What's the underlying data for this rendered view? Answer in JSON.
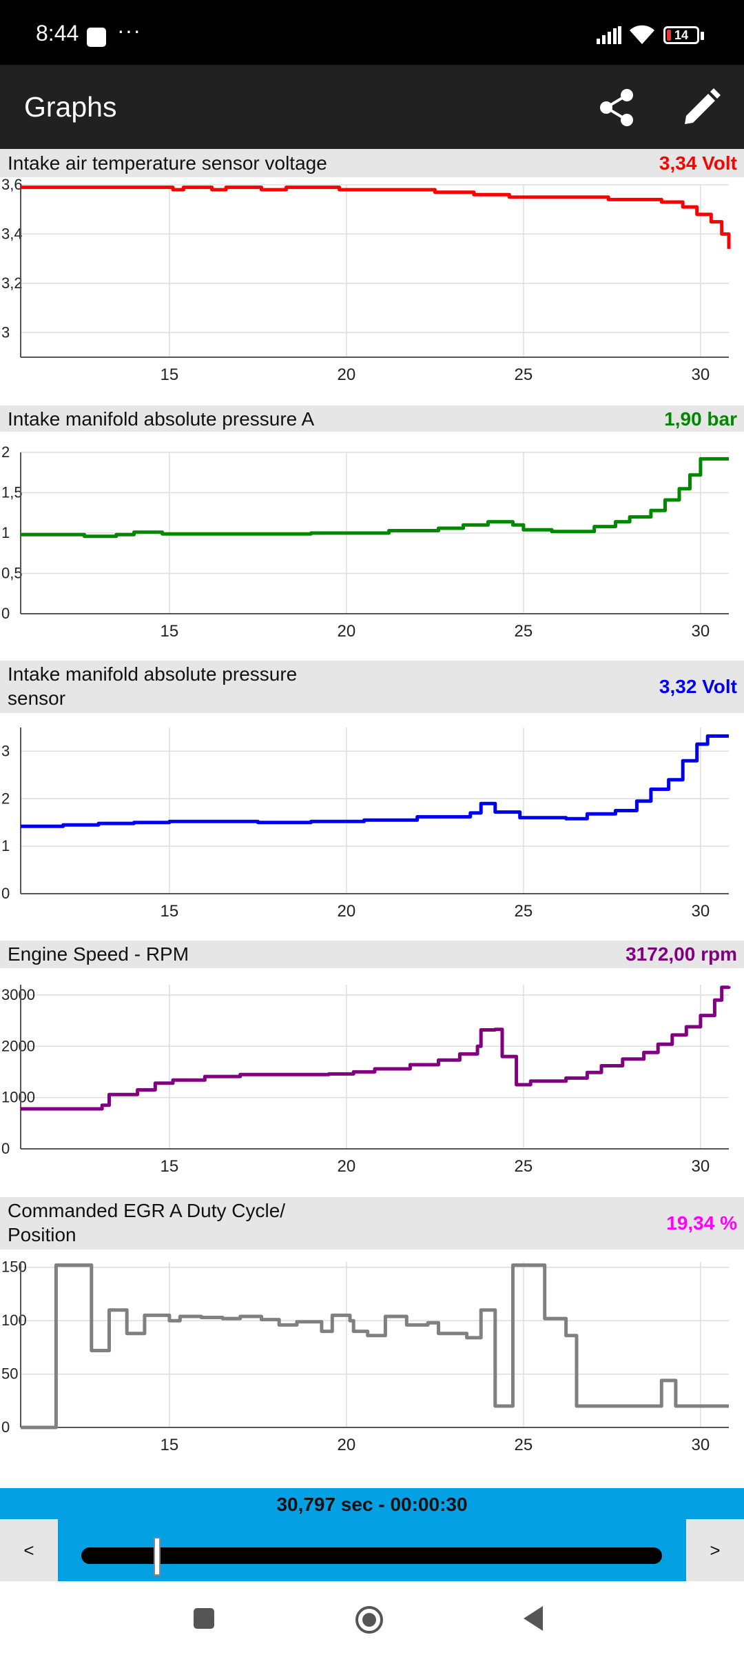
{
  "status_bar": {
    "time": "8:44",
    "notification_dots": "···",
    "battery_level": "14",
    "icons": [
      "signal-icon",
      "wifi-icon",
      "battery-icon"
    ]
  },
  "app_bar": {
    "title": "Graphs",
    "actions": [
      "share-icon",
      "edit-icon"
    ]
  },
  "panels": [
    {
      "name": "Intake air temperature sensor voltage",
      "value": "3,34 Volt",
      "color": "#ff0000"
    },
    {
      "name": "Intake manifold absolute pressure A",
      "value": "1,90 bar",
      "color": "#008800"
    },
    {
      "name_line1": "Intake manifold absolute pressure",
      "name_line2": "sensor",
      "value": "3,32 Volt",
      "color": "#0000ee"
    },
    {
      "name": "Engine Speed - RPM",
      "value": "3172,00 rpm",
      "color": "#800080"
    },
    {
      "name_line1": "Commanded EGR A Duty Cycle/",
      "name_line2": "Position",
      "value": "19,34 %",
      "color": "#ff00ff"
    }
  ],
  "chart_data": [
    {
      "type": "line",
      "series_color": "#ff0000",
      "xlim": [
        10.8,
        30.8
      ],
      "x_ticks": [
        "15",
        "20",
        "25",
        "30"
      ],
      "ylim": [
        2.9,
        3.6
      ],
      "y_ticks": [
        "3",
        "3,2",
        "3,4",
        "3,6"
      ],
      "y_tick_values": [
        3,
        3.2,
        3.4,
        3.6
      ],
      "grid": true,
      "points": [
        [
          10.8,
          3.59
        ],
        [
          14.8,
          3.59
        ],
        [
          15.1,
          3.58
        ],
        [
          15.4,
          3.59
        ],
        [
          16.2,
          3.58
        ],
        [
          16.6,
          3.59
        ],
        [
          17.6,
          3.58
        ],
        [
          18.3,
          3.59
        ],
        [
          19.8,
          3.58
        ],
        [
          22.0,
          3.58
        ],
        [
          22.5,
          3.57
        ],
        [
          23.4,
          3.57
        ],
        [
          23.6,
          3.56
        ],
        [
          24.2,
          3.56
        ],
        [
          24.6,
          3.55
        ],
        [
          26.9,
          3.55
        ],
        [
          27.4,
          3.54
        ],
        [
          28.3,
          3.54
        ],
        [
          28.9,
          3.53
        ],
        [
          29.5,
          3.51
        ],
        [
          29.9,
          3.48
        ],
        [
          30.3,
          3.45
        ],
        [
          30.6,
          3.4
        ],
        [
          30.8,
          3.34
        ]
      ]
    },
    {
      "type": "line",
      "series_color": "#008800",
      "xlim": [
        10.8,
        30.8
      ],
      "x_ticks": [
        "15",
        "20",
        "25",
        "30"
      ],
      "ylim": [
        0,
        2
      ],
      "y_ticks": [
        "0",
        "0,5",
        "1",
        "1,5",
        "2"
      ],
      "y_tick_values": [
        0,
        0.5,
        1,
        1.5,
        2
      ],
      "grid": true,
      "points": [
        [
          10.8,
          0.98
        ],
        [
          12.2,
          0.98
        ],
        [
          12.6,
          0.96
        ],
        [
          13.5,
          0.98
        ],
        [
          14.0,
          1.01
        ],
        [
          14.8,
          0.99
        ],
        [
          18.0,
          0.99
        ],
        [
          19.0,
          1.0
        ],
        [
          20.6,
          1.0
        ],
        [
          21.2,
          1.03
        ],
        [
          22.6,
          1.06
        ],
        [
          23.3,
          1.1
        ],
        [
          24.0,
          1.14
        ],
        [
          24.7,
          1.1
        ],
        [
          25.0,
          1.04
        ],
        [
          25.8,
          1.02
        ],
        [
          26.6,
          1.02
        ],
        [
          27.0,
          1.08
        ],
        [
          27.6,
          1.14
        ],
        [
          28.0,
          1.2
        ],
        [
          28.6,
          1.28
        ],
        [
          29.0,
          1.41
        ],
        [
          29.4,
          1.55
        ],
        [
          29.7,
          1.72
        ],
        [
          30.0,
          1.92
        ],
        [
          30.8,
          1.92
        ]
      ]
    },
    {
      "type": "line",
      "series_color": "#0000ee",
      "xlim": [
        10.8,
        30.8
      ],
      "x_ticks": [
        "15",
        "20",
        "25",
        "30"
      ],
      "ylim": [
        0,
        3.5
      ],
      "y_ticks": [
        "0",
        "1",
        "2",
        "3"
      ],
      "y_tick_values": [
        0,
        1,
        2,
        3
      ],
      "grid": true,
      "points": [
        [
          10.8,
          1.42
        ],
        [
          12.0,
          1.45
        ],
        [
          13.0,
          1.48
        ],
        [
          14.0,
          1.5
        ],
        [
          15.0,
          1.52
        ],
        [
          17.5,
          1.5
        ],
        [
          19.0,
          1.52
        ],
        [
          20.5,
          1.55
        ],
        [
          22.0,
          1.62
        ],
        [
          23.5,
          1.7
        ],
        [
          23.8,
          1.9
        ],
        [
          24.2,
          1.72
        ],
        [
          24.9,
          1.6
        ],
        [
          26.2,
          1.58
        ],
        [
          26.8,
          1.68
        ],
        [
          27.6,
          1.75
        ],
        [
          28.2,
          1.95
        ],
        [
          28.6,
          2.2
        ],
        [
          29.1,
          2.4
        ],
        [
          29.5,
          2.8
        ],
        [
          29.9,
          3.15
        ],
        [
          30.2,
          3.32
        ],
        [
          30.8,
          3.32
        ]
      ]
    },
    {
      "type": "line",
      "series_color": "#800080",
      "xlim": [
        10.8,
        30.8
      ],
      "x_ticks": [
        "15",
        "20",
        "25",
        "30"
      ],
      "ylim": [
        0,
        3200
      ],
      "y_ticks": [
        "0",
        "1000",
        "2000",
        "3000"
      ],
      "y_tick_values": [
        0,
        1000,
        2000,
        3000
      ],
      "grid": true,
      "points": [
        [
          10.8,
          780
        ],
        [
          12.6,
          780
        ],
        [
          13.1,
          850
        ],
        [
          13.3,
          1060
        ],
        [
          14.1,
          1150
        ],
        [
          14.6,
          1280
        ],
        [
          15.1,
          1340
        ],
        [
          16.0,
          1410
        ],
        [
          17.0,
          1450
        ],
        [
          19.5,
          1460
        ],
        [
          20.2,
          1500
        ],
        [
          20.8,
          1560
        ],
        [
          21.8,
          1640
        ],
        [
          22.6,
          1730
        ],
        [
          23.2,
          1850
        ],
        [
          23.7,
          2000
        ],
        [
          23.8,
          2320
        ],
        [
          24.2,
          2330
        ],
        [
          24.4,
          1800
        ],
        [
          24.8,
          1800
        ],
        [
          24.8,
          1250
        ],
        [
          25.2,
          1320
        ],
        [
          25.8,
          1320
        ],
        [
          26.2,
          1380
        ],
        [
          26.8,
          1490
        ],
        [
          27.2,
          1620
        ],
        [
          27.8,
          1750
        ],
        [
          28.4,
          1880
        ],
        [
          28.8,
          2040
        ],
        [
          29.2,
          2220
        ],
        [
          29.6,
          2380
        ],
        [
          30.0,
          2600
        ],
        [
          30.4,
          2900
        ],
        [
          30.6,
          3150
        ],
        [
          30.8,
          3170
        ]
      ]
    },
    {
      "type": "line",
      "series_color": "#808080",
      "xlim": [
        10.8,
        30.8
      ],
      "x_ticks": [
        "15",
        "20",
        "25",
        "30"
      ],
      "ylim": [
        0,
        155
      ],
      "y_ticks": [
        "0",
        "50",
        "100",
        "150"
      ],
      "y_tick_values": [
        0,
        50,
        100,
        150
      ],
      "grid": true,
      "points": [
        [
          10.8,
          0
        ],
        [
          11.8,
          0
        ],
        [
          11.8,
          152
        ],
        [
          12.8,
          152
        ],
        [
          12.8,
          72
        ],
        [
          13.2,
          72
        ],
        [
          13.3,
          110
        ],
        [
          13.7,
          110
        ],
        [
          13.8,
          88
        ],
        [
          14.1,
          88
        ],
        [
          14.3,
          105
        ],
        [
          14.8,
          105
        ],
        [
          15.0,
          100
        ],
        [
          15.3,
          104
        ],
        [
          15.9,
          103
        ],
        [
          16.5,
          102
        ],
        [
          17.0,
          104
        ],
        [
          17.6,
          101
        ],
        [
          18.1,
          96
        ],
        [
          18.6,
          99
        ],
        [
          19.3,
          90
        ],
        [
          19.6,
          105
        ],
        [
          20.1,
          100
        ],
        [
          20.2,
          90
        ],
        [
          20.6,
          86
        ],
        [
          20.9,
          86
        ],
        [
          21.1,
          104
        ],
        [
          21.7,
          96
        ],
        [
          22.3,
          98
        ],
        [
          22.6,
          88
        ],
        [
          23.4,
          84
        ],
        [
          23.7,
          84
        ],
        [
          23.8,
          110
        ],
        [
          24.1,
          110
        ],
        [
          24.2,
          20
        ],
        [
          24.6,
          20
        ],
        [
          24.7,
          152
        ],
        [
          25.5,
          152
        ],
        [
          25.6,
          102
        ],
        [
          25.9,
          102
        ],
        [
          26.2,
          86
        ],
        [
          26.5,
          86
        ],
        [
          26.5,
          20
        ],
        [
          28.8,
          20
        ],
        [
          28.9,
          44
        ],
        [
          29.2,
          44
        ],
        [
          29.3,
          20
        ],
        [
          30.8,
          20
        ]
      ]
    }
  ],
  "timeline": {
    "timestamp": "30,797 sec - 00:00:30",
    "prev_label": "<",
    "next_label": ">",
    "position_fraction": 0.13
  },
  "nav_bar": {
    "icons": [
      "recent-apps-icon",
      "home-icon",
      "back-icon"
    ]
  }
}
